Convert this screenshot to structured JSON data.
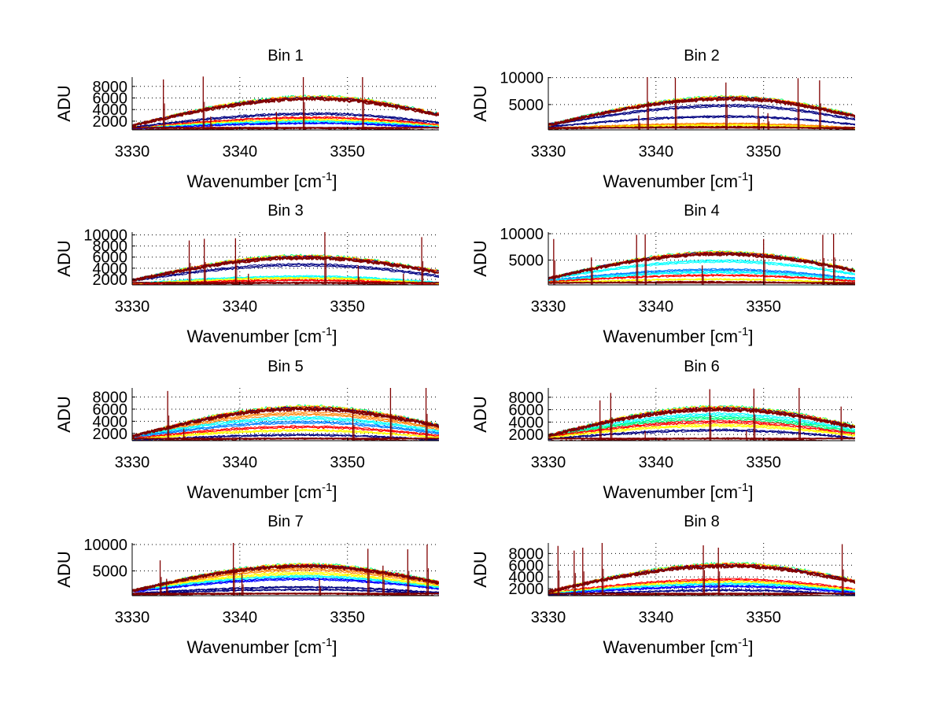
{
  "figure": {
    "background": "#ffffff"
  },
  "chart_data": [
    {
      "type": "line",
      "title": "Bin 1",
      "xlabel": "Wavenumber [cm-1]",
      "xlabel_main": "Wavenumber [cm",
      "xlabel_sup": "-1",
      "xlabel_close": "]",
      "ylabel": "ADU",
      "xlim": [
        3330,
        3358.5
      ],
      "ylim": [
        500,
        9600
      ],
      "xticks": [
        3330,
        3340,
        3350
      ],
      "yticks": [
        2000,
        4000,
        6000,
        8000
      ],
      "grid": true,
      "envelope_peak": 6300,
      "envelope_center": 3347,
      "envelope_start": 1200,
      "envelope_end": 3300,
      "bands": [
        {
          "level": 2700,
          "color": "#ff0000"
        },
        {
          "level": 2300,
          "color": "#ffff00"
        },
        {
          "level": 2000,
          "color": "#00ffff"
        },
        {
          "level": 1700,
          "color": "#0000ff"
        },
        {
          "level": 3400,
          "color": "#000080"
        },
        {
          "level": 800,
          "color": "#800000"
        }
      ],
      "spikes": [
        {
          "x": 3332.9,
          "top": 9200
        },
        {
          "x": 3336.6,
          "top": 9700
        },
        {
          "x": 3345.9,
          "top": 9600
        },
        {
          "x": 3351.4,
          "top": 9600
        },
        {
          "x": 3343.4,
          "top": 3600
        },
        {
          "x": 3337.3,
          "top": 2800
        }
      ]
    },
    {
      "type": "line",
      "title": "Bin 2",
      "xlabel": "Wavenumber [cm-1]",
      "xlabel_main": "Wavenumber [cm",
      "xlabel_sup": "-1",
      "xlabel_close": "]",
      "ylabel": "ADU",
      "xlim": [
        3330,
        3358.5
      ],
      "ylim": [
        300,
        10100
      ],
      "xticks": [
        3330,
        3340,
        3350
      ],
      "yticks": [
        5000,
        10000
      ],
      "grid": true,
      "envelope_peak": 6500,
      "envelope_center": 3347,
      "envelope_start": 1200,
      "envelope_end": 3000,
      "bands": [
        {
          "level": 5000,
          "color": "#000080"
        },
        {
          "level": 2900,
          "color": "#000080"
        },
        {
          "level": 1500,
          "color": "#ff8000"
        },
        {
          "level": 1200,
          "color": "#ffff00"
        },
        {
          "level": 900,
          "color": "#800000"
        }
      ],
      "spikes": [
        {
          "x": 3339.2,
          "top": 10100
        },
        {
          "x": 3341.8,
          "top": 10000
        },
        {
          "x": 3346.5,
          "top": 9100
        },
        {
          "x": 3349.5,
          "top": 4500
        },
        {
          "x": 3350.4,
          "top": 3400
        },
        {
          "x": 3353.2,
          "top": 9900
        },
        {
          "x": 3355.2,
          "top": 9500
        },
        {
          "x": 3338.4,
          "top": 3000
        }
      ]
    },
    {
      "type": "line",
      "title": "Bin 3",
      "xlabel": "Wavenumber [cm-1]",
      "xlabel_main": "Wavenumber [cm",
      "xlabel_sup": "-1",
      "xlabel_close": "]",
      "ylabel": "ADU",
      "xlim": [
        3330,
        3358.5
      ],
      "ylim": [
        1000,
        10500
      ],
      "xticks": [
        3330,
        3340,
        3350
      ],
      "yticks": [
        2000,
        4000,
        6000,
        8000,
        10000
      ],
      "grid": true,
      "envelope_peak": 6300,
      "envelope_center": 3346,
      "envelope_start": 1800,
      "envelope_end": 3500,
      "bands": [
        {
          "level": 4800,
          "color": "#000080"
        },
        {
          "level": 2600,
          "color": "#00ffff"
        },
        {
          "level": 2300,
          "color": "#ffff00"
        },
        {
          "level": 1900,
          "color": "#ff0000"
        },
        {
          "level": 1400,
          "color": "#800000"
        }
      ],
      "spikes": [
        {
          "x": 3335.3,
          "top": 9000
        },
        {
          "x": 3336.7,
          "top": 9300
        },
        {
          "x": 3339.6,
          "top": 9400
        },
        {
          "x": 3347.9,
          "top": 10500
        },
        {
          "x": 3351.0,
          "top": 4500
        },
        {
          "x": 3356.9,
          "top": 9600
        },
        {
          "x": 3340.8,
          "top": 3000
        },
        {
          "x": 3355.2,
          "top": 3000
        }
      ]
    },
    {
      "type": "line",
      "title": "Bin 4",
      "xlabel": "Wavenumber [cm-1]",
      "xlabel_main": "Wavenumber [cm",
      "xlabel_sup": "-1",
      "xlabel_close": "]",
      "ylabel": "ADU",
      "xlim": [
        3330,
        3358.5
      ],
      "ylim": [
        300,
        10300
      ],
      "xticks": [
        3330,
        3340,
        3350
      ],
      "yticks": [
        5000,
        10000
      ],
      "grid": true,
      "envelope_peak": 6600,
      "envelope_center": 3346,
      "envelope_start": 1500,
      "envelope_end": 3200,
      "bands": [
        {
          "level": 5000,
          "color": "#00ffff"
        },
        {
          "level": 3300,
          "color": "#0080ff"
        },
        {
          "level": 2800,
          "color": "#00ffff"
        },
        {
          "level": 2200,
          "color": "#ff0000"
        },
        {
          "level": 1400,
          "color": "#ffff00"
        },
        {
          "level": 900,
          "color": "#800000"
        }
      ],
      "spikes": [
        {
          "x": 3330.5,
          "top": 9000
        },
        {
          "x": 3334.0,
          "top": 5500
        },
        {
          "x": 3338.2,
          "top": 9800
        },
        {
          "x": 3339.0,
          "top": 9900
        },
        {
          "x": 3344.3,
          "top": 4000
        },
        {
          "x": 3350.0,
          "top": 9000
        },
        {
          "x": 3355.5,
          "top": 9800
        },
        {
          "x": 3356.5,
          "top": 10000
        }
      ]
    },
    {
      "type": "line",
      "title": "Bin 5",
      "xlabel": "Wavenumber [cm-1]",
      "xlabel_main": "Wavenumber [cm",
      "xlabel_sup": "-1",
      "xlabel_close": "]",
      "ylabel": "ADU",
      "xlim": [
        3330,
        3358.5
      ],
      "ylim": [
        800,
        9500
      ],
      "xticks": [
        3330,
        3340,
        3350
      ],
      "yticks": [
        2000,
        4000,
        6000,
        8000
      ],
      "grid": true,
      "envelope_peak": 6500,
      "envelope_center": 3346,
      "envelope_start": 1500,
      "envelope_end": 3400,
      "bands": [
        {
          "level": 5500,
          "color": "#ff8000"
        },
        {
          "level": 4700,
          "color": "#00ffff"
        },
        {
          "level": 4000,
          "color": "#0080ff"
        },
        {
          "level": 3200,
          "color": "#ff0000"
        },
        {
          "level": 2600,
          "color": "#ffff00"
        },
        {
          "level": 1800,
          "color": "#000080"
        },
        {
          "level": 1200,
          "color": "#800000"
        }
      ],
      "spikes": [
        {
          "x": 3333.3,
          "top": 9000
        },
        {
          "x": 3350.5,
          "top": 6200
        },
        {
          "x": 3354.0,
          "top": 9500
        },
        {
          "x": 3357.3,
          "top": 9500
        },
        {
          "x": 3334.8,
          "top": 2800
        }
      ]
    },
    {
      "type": "line",
      "title": "Bin 6",
      "xlabel": "Wavenumber [cm-1]",
      "xlabel_main": "Wavenumber [cm",
      "xlabel_sup": "-1",
      "xlabel_close": "]",
      "ylabel": "ADU",
      "xlim": [
        3330,
        3358.5
      ],
      "ylim": [
        1000,
        9500
      ],
      "xticks": [
        3330,
        3340,
        3350
      ],
      "yticks": [
        2000,
        4000,
        6000,
        8000
      ],
      "grid": true,
      "envelope_peak": 6500,
      "envelope_center": 3346,
      "envelope_start": 1800,
      "envelope_end": 3400,
      "bands": [
        {
          "level": 5400,
          "color": "#00ffff"
        },
        {
          "level": 4800,
          "color": "#00ff80"
        },
        {
          "level": 4200,
          "color": "#ff0000"
        },
        {
          "level": 3600,
          "color": "#ffff00"
        },
        {
          "level": 2800,
          "color": "#000080"
        },
        {
          "level": 1400,
          "color": "#800000"
        }
      ],
      "spikes": [
        {
          "x": 3334.8,
          "top": 7500
        },
        {
          "x": 3335.8,
          "top": 8700
        },
        {
          "x": 3345.0,
          "top": 9300
        },
        {
          "x": 3349.1,
          "top": 9400
        },
        {
          "x": 3353.3,
          "top": 9500
        },
        {
          "x": 3357.2,
          "top": 6500
        },
        {
          "x": 3339.0,
          "top": 2500
        },
        {
          "x": 3348.4,
          "top": 2600
        }
      ]
    },
    {
      "type": "line",
      "title": "Bin 7",
      "xlabel": "Wavenumber [cm-1]",
      "xlabel_main": "Wavenumber [cm",
      "xlabel_sup": "-1",
      "xlabel_close": "]",
      "ylabel": "ADU",
      "xlim": [
        3330,
        3358.5
      ],
      "ylim": [
        300,
        10300
      ],
      "xticks": [
        3330,
        3340,
        3350
      ],
      "yticks": [
        5000,
        10000
      ],
      "grid": true,
      "envelope_peak": 6300,
      "envelope_center": 3346,
      "envelope_start": 1200,
      "envelope_end": 2900,
      "bands": [
        {
          "level": 5500,
          "color": "#ff8000"
        },
        {
          "level": 4700,
          "color": "#ffff00"
        },
        {
          "level": 4100,
          "color": "#00ffff"
        },
        {
          "level": 3600,
          "color": "#0000ff"
        },
        {
          "level": 2000,
          "color": "#000080"
        },
        {
          "level": 1500,
          "color": "#000080"
        },
        {
          "level": 700,
          "color": "#800000"
        }
      ],
      "spikes": [
        {
          "x": 3332.6,
          "top": 7000
        },
        {
          "x": 3333.2,
          "top": 3500
        },
        {
          "x": 3339.4,
          "top": 10300
        },
        {
          "x": 3340.2,
          "top": 4500
        },
        {
          "x": 3347.4,
          "top": 3500
        },
        {
          "x": 3351.9,
          "top": 9200
        },
        {
          "x": 3353.3,
          "top": 6000
        },
        {
          "x": 3355.6,
          "top": 9100
        },
        {
          "x": 3357.4,
          "top": 10000
        }
      ]
    },
    {
      "type": "line",
      "title": "Bin 8",
      "xlabel": "Wavenumber [cm-1]",
      "xlabel_main": "Wavenumber [cm",
      "xlabel_sup": "-1",
      "xlabel_close": "]",
      "ylabel": "ADU",
      "xlim": [
        3330,
        3358.5
      ],
      "ylim": [
        800,
        9800
      ],
      "xticks": [
        3330,
        3340,
        3350
      ],
      "yticks": [
        2000,
        4000,
        6000,
        8000
      ],
      "grid": true,
      "envelope_peak": 6300,
      "envelope_center": 3347,
      "envelope_start": 1500,
      "envelope_end": 3400,
      "bands": [
        {
          "level": 3700,
          "color": "#ff0000"
        },
        {
          "level": 3300,
          "color": "#ffff00"
        },
        {
          "level": 2900,
          "color": "#00ffff"
        },
        {
          "level": 2500,
          "color": "#0000ff"
        },
        {
          "level": 1800,
          "color": "#000080"
        },
        {
          "level": 1100,
          "color": "#800000"
        }
      ],
      "spikes": [
        {
          "x": 3330.9,
          "top": 9300
        },
        {
          "x": 3332.4,
          "top": 8500
        },
        {
          "x": 3333.2,
          "top": 9000
        },
        {
          "x": 3335.0,
          "top": 9800
        },
        {
          "x": 3344.4,
          "top": 9400
        },
        {
          "x": 3345.8,
          "top": 9000
        },
        {
          "x": 3357.3,
          "top": 9600
        }
      ]
    }
  ]
}
